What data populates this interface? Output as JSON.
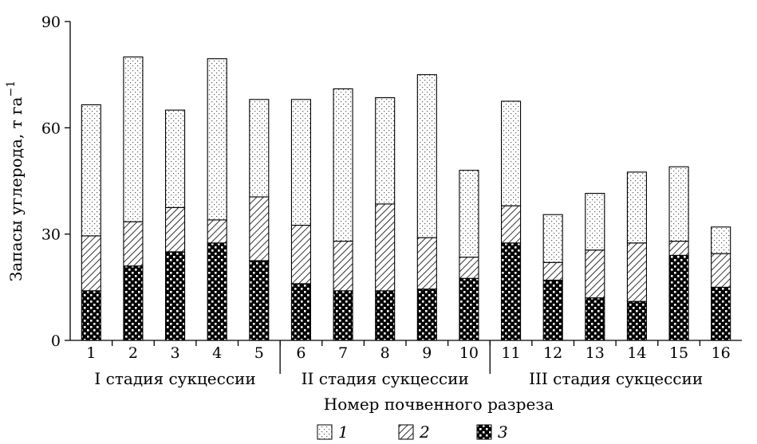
{
  "chart_data": {
    "type": "bar",
    "stacked": true,
    "categories": [
      "1",
      "2",
      "3",
      "4",
      "5",
      "6",
      "7",
      "8",
      "9",
      "10",
      "11",
      "12",
      "13",
      "14",
      "15",
      "16"
    ],
    "series": [
      {
        "name": "3",
        "pattern": "checker",
        "values": [
          14,
          21,
          25,
          27.5,
          22.5,
          16,
          14,
          14,
          14.5,
          17.5,
          27.5,
          17,
          12,
          11,
          24,
          15
        ]
      },
      {
        "name": "2",
        "pattern": "hatch",
        "values": [
          15.5,
          12.5,
          12.5,
          6.5,
          18,
          16.5,
          14,
          24.5,
          14.5,
          6,
          10.5,
          5,
          13.5,
          16.5,
          4,
          9.5
        ]
      },
      {
        "name": "1",
        "pattern": "dots",
        "values": [
          37,
          46.5,
          27.5,
          45.5,
          27.5,
          35.5,
          43,
          30,
          46,
          24.5,
          29.5,
          13.5,
          16,
          20,
          21,
          7.5
        ]
      }
    ],
    "ylabel": "Запасы углерода, т га",
    "ylabel_superscript": "−1",
    "xlabel": "Номер почвенного разреза",
    "ylim": [
      0,
      90
    ],
    "yticks": [
      "0",
      "30",
      "60",
      "90"
    ],
    "groups": [
      {
        "label": "I стадия сукцессии",
        "categories": [
          "1",
          "2",
          "3",
          "4",
          "5"
        ]
      },
      {
        "label": "II стадия сукцессии",
        "categories": [
          "6",
          "7",
          "8",
          "9",
          "10"
        ]
      },
      {
        "label": "III стадия сукцессии",
        "categories": [
          "11",
          "12",
          "13",
          "14",
          "15",
          "16"
        ]
      }
    ],
    "legend": [
      {
        "label": "1",
        "pattern": "dots"
      },
      {
        "label": "2",
        "pattern": "hatch"
      },
      {
        "label": "3",
        "pattern": "checker"
      }
    ],
    "legend_position": "bottom",
    "grid": false
  }
}
